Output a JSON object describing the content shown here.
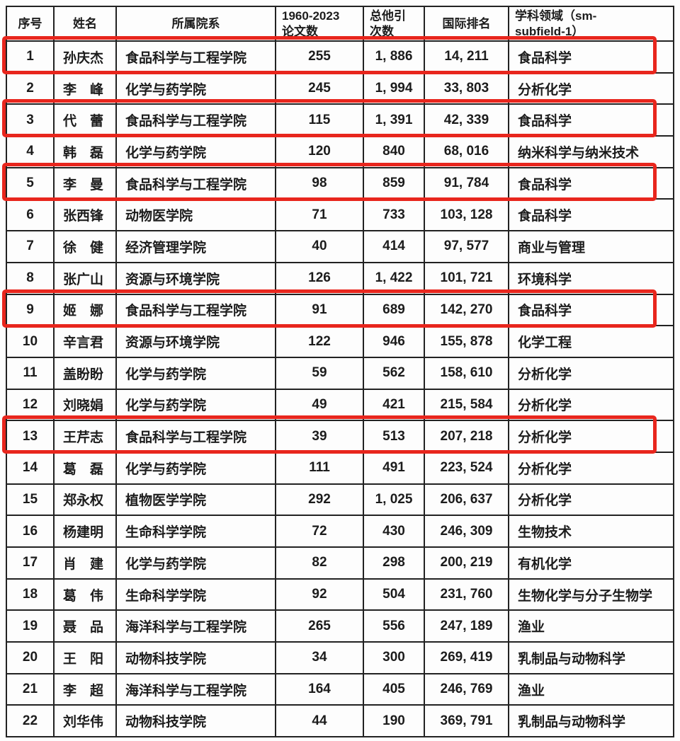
{
  "table": {
    "columns": [
      {
        "key": "no",
        "label": "序号",
        "align": "c",
        "header_align": "c"
      },
      {
        "key": "name",
        "label": "姓名",
        "align": "l",
        "header_align": "c"
      },
      {
        "key": "dept",
        "label": "所属院系",
        "align": "l",
        "header_align": "c"
      },
      {
        "key": "papers",
        "label": "1960-2023\n论文数",
        "align": "c",
        "header_align": "l"
      },
      {
        "key": "citations",
        "label": "总他引\n次数",
        "align": "c",
        "header_align": "l"
      },
      {
        "key": "rank",
        "label": "国际排名",
        "align": "c",
        "header_align": "c"
      },
      {
        "key": "field",
        "label": "学科领域（sm-\nsubfield-1）",
        "align": "l",
        "header_align": "l"
      }
    ],
    "rows": [
      {
        "no": "1",
        "name": "孙庆杰",
        "dept": "食品科学与工程学院",
        "papers": "255",
        "citations": "1, 886",
        "rank": "14, 211",
        "field": "食品科学",
        "highlighted": true
      },
      {
        "no": "2",
        "name": "李　峰",
        "dept": "化学与药学院",
        "papers": "245",
        "citations": "1, 994",
        "rank": "33, 803",
        "field": "分析化学",
        "highlighted": false
      },
      {
        "no": "3",
        "name": "代　蕾",
        "dept": "食品科学与工程学院",
        "papers": "115",
        "citations": "1, 391",
        "rank": "42, 339",
        "field": "食品科学",
        "highlighted": true
      },
      {
        "no": "4",
        "name": "韩　磊",
        "dept": "化学与药学院",
        "papers": "120",
        "citations": "840",
        "rank": "68, 016",
        "field": "纳米科学与纳米技术",
        "highlighted": false
      },
      {
        "no": "5",
        "name": "李　曼",
        "dept": "食品科学与工程学院",
        "papers": "98",
        "citations": "859",
        "rank": "91, 784",
        "field": "食品科学",
        "highlighted": true
      },
      {
        "no": "6",
        "name": "张西锋",
        "dept": "动物医学院",
        "papers": "71",
        "citations": "733",
        "rank": "103, 128",
        "field": "食品科学",
        "highlighted": false
      },
      {
        "no": "7",
        "name": "徐　健",
        "dept": "经济管理学院",
        "papers": "40",
        "citations": "414",
        "rank": "97, 577",
        "field": "商业与管理",
        "highlighted": false
      },
      {
        "no": "8",
        "name": "张广山",
        "dept": "资源与环境学院",
        "papers": "126",
        "citations": "1, 422",
        "rank": "101, 721",
        "field": "环境科学",
        "highlighted": false
      },
      {
        "no": "9",
        "name": "姬　娜",
        "dept": "食品科学与工程学院",
        "papers": "91",
        "citations": "689",
        "rank": "142, 270",
        "field": "食品科学",
        "highlighted": true
      },
      {
        "no": "10",
        "name": "辛言君",
        "dept": "资源与环境学院",
        "papers": "122",
        "citations": "946",
        "rank": "155, 878",
        "field": "化学工程",
        "highlighted": false
      },
      {
        "no": "11",
        "name": "盖盼盼",
        "dept": "化学与药学院",
        "papers": "59",
        "citations": "562",
        "rank": "158, 610",
        "field": "分析化学",
        "highlighted": false
      },
      {
        "no": "12",
        "name": "刘晓娟",
        "dept": "化学与药学院",
        "papers": "49",
        "citations": "421",
        "rank": "215, 584",
        "field": "分析化学",
        "highlighted": false
      },
      {
        "no": "13",
        "name": "王芹志",
        "dept": "食品科学与工程学院",
        "papers": "39",
        "citations": "513",
        "rank": "207, 218",
        "field": "分析化学",
        "highlighted": true
      },
      {
        "no": "14",
        "name": "葛　磊",
        "dept": "化学与药学院",
        "papers": "111",
        "citations": "491",
        "rank": "223, 524",
        "field": "分析化学",
        "highlighted": false
      },
      {
        "no": "15",
        "name": "郑永权",
        "dept": "植物医学学院",
        "papers": "292",
        "citations": "1, 025",
        "rank": "206, 637",
        "field": "分析化学",
        "highlighted": false
      },
      {
        "no": "16",
        "name": "杨建明",
        "dept": "生命科学学院",
        "papers": "72",
        "citations": "430",
        "rank": "246, 309",
        "field": "生物技术",
        "highlighted": false
      },
      {
        "no": "17",
        "name": "肖　建",
        "dept": "化学与药学院",
        "papers": "82",
        "citations": "298",
        "rank": "200, 219",
        "field": "有机化学",
        "highlighted": false
      },
      {
        "no": "18",
        "name": "葛　伟",
        "dept": "生命科学学院",
        "papers": "92",
        "citations": "504",
        "rank": "231, 760",
        "field": "生物化学与分子生物学",
        "highlighted": false
      },
      {
        "no": "19",
        "name": "聂　品",
        "dept": "海洋科学与工程学院",
        "papers": "265",
        "citations": "556",
        "rank": "247, 189",
        "field": "渔业",
        "highlighted": false
      },
      {
        "no": "20",
        "name": "王　阳",
        "dept": "动物科技学院",
        "papers": "34",
        "citations": "300",
        "rank": "269, 419",
        "field": "乳制品与动物科学",
        "highlighted": false
      },
      {
        "no": "21",
        "name": "李　超",
        "dept": "海洋科学与工程学院",
        "papers": "164",
        "citations": "405",
        "rank": "246, 769",
        "field": "渔业",
        "highlighted": false
      },
      {
        "no": "22",
        "name": "刘华伟",
        "dept": "动物科技学院",
        "papers": "44",
        "citations": "190",
        "rank": "369, 791",
        "field": "乳制品与动物科学",
        "highlighted": false
      }
    ]
  },
  "annotation": {
    "highlight_color": "#e8261d",
    "highlighted_row_numbers": [
      "1",
      "3",
      "5",
      "9",
      "13"
    ]
  }
}
